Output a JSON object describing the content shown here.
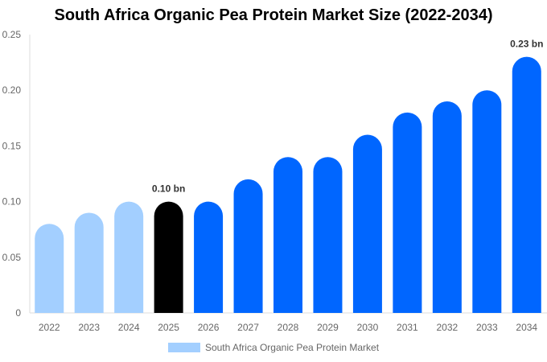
{
  "chart_data": {
    "type": "bar",
    "title": "South Africa Organic Pea Protein Market Size (2022-2034)",
    "categories": [
      "2022",
      "2023",
      "2024",
      "2025",
      "2026",
      "2027",
      "2028",
      "2029",
      "2030",
      "2031",
      "2032",
      "2033",
      "2034"
    ],
    "series": [
      {
        "name": "South Africa Organic Pea Protein Market",
        "values": [
          0.08,
          0.09,
          0.1,
          0.1,
          0.1,
          0.12,
          0.14,
          0.14,
          0.16,
          0.18,
          0.19,
          0.2,
          0.23
        ]
      }
    ],
    "bar_colors": {
      "historical": "#a3cfff",
      "current": "#000000",
      "forecast": "#0066ff"
    },
    "current_year": "2025",
    "data_labels": [
      {
        "category": "2025",
        "text": "0.10 bn"
      },
      {
        "category": "2034",
        "text": "0.23 bn"
      }
    ],
    "ylim": [
      0,
      0.25
    ],
    "yticks": [
      "0",
      "0.05",
      "0.10",
      "0.15",
      "0.20",
      "0.25"
    ],
    "xlabel": "",
    "ylabel": "",
    "grid": false,
    "legend_position": "bottom"
  }
}
